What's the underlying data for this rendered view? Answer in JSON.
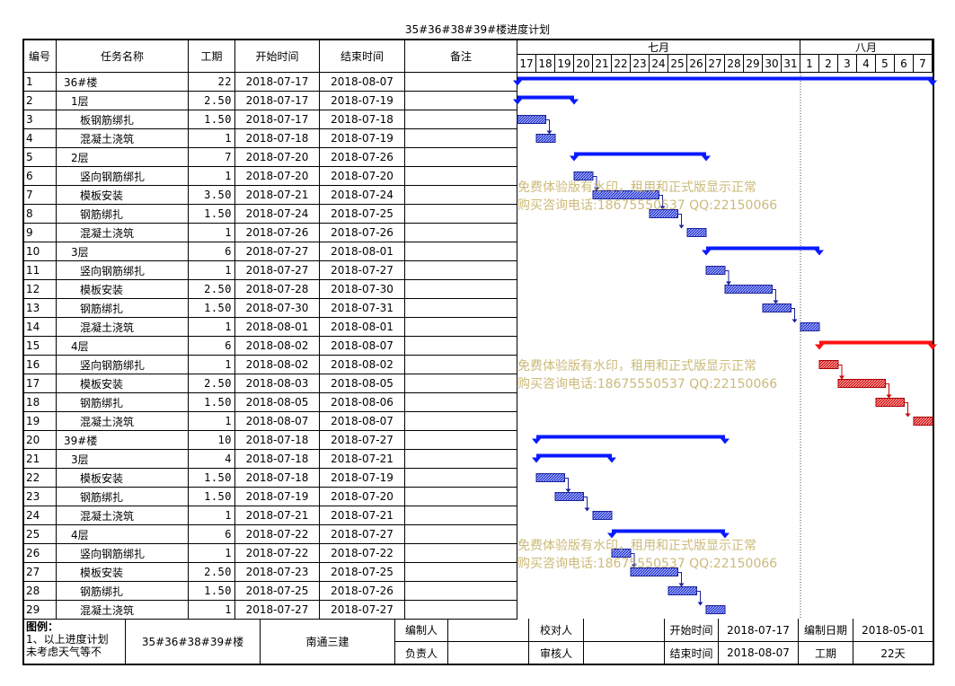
{
  "title": "35#36#38#39#楼进度计划",
  "headers": {
    "id": "编号",
    "name": "任务名称",
    "duration": "工期",
    "start": "开始时间",
    "end": "结束时间",
    "note": "备注"
  },
  "months": [
    "七月",
    "八月"
  ],
  "days": [
    "17",
    "18",
    "19",
    "20",
    "21",
    "22",
    "23",
    "24",
    "25",
    "26",
    "27",
    "28",
    "29",
    "30",
    "31",
    "1",
    "2",
    "3",
    "4",
    "5",
    "6",
    "7"
  ],
  "chart_data": {
    "type": "gantt",
    "timeline_start": "2018-07-17",
    "timeline_end": "2018-08-07",
    "rows": [
      {
        "id": "1",
        "name": "36#楼",
        "duration": "22",
        "start": "2018-07-17",
        "end": "2018-08-07",
        "kind": "summary",
        "color": "#0a1aff"
      },
      {
        "id": "2",
        "name": "1层",
        "duration": "2.50",
        "start": "2018-07-17",
        "end": "2018-07-19",
        "kind": "summary",
        "color": "#0a1aff"
      },
      {
        "id": "3",
        "name": "板钢筋绑扎",
        "duration": "1.50",
        "start": "2018-07-17",
        "end": "2018-07-18",
        "kind": "task",
        "color": "#3344dd"
      },
      {
        "id": "4",
        "name": "混凝土浇筑",
        "duration": "1",
        "start": "2018-07-18",
        "end": "2018-07-19",
        "kind": "task",
        "color": "#3344dd"
      },
      {
        "id": "5",
        "name": "2层",
        "duration": "7",
        "start": "2018-07-20",
        "end": "2018-07-26",
        "kind": "summary",
        "color": "#0a1aff"
      },
      {
        "id": "6",
        "name": "竖向钢筋绑扎",
        "duration": "1",
        "start": "2018-07-20",
        "end": "2018-07-20",
        "kind": "task",
        "color": "#3344dd"
      },
      {
        "id": "7",
        "name": "模板安装",
        "duration": "3.50",
        "start": "2018-07-21",
        "end": "2018-07-24",
        "kind": "task",
        "color": "#3344dd"
      },
      {
        "id": "8",
        "name": "钢筋绑扎",
        "duration": "1.50",
        "start": "2018-07-24",
        "end": "2018-07-25",
        "kind": "task",
        "color": "#3344dd"
      },
      {
        "id": "9",
        "name": "混凝土浇筑",
        "duration": "1",
        "start": "2018-07-26",
        "end": "2018-07-26",
        "kind": "task",
        "color": "#3344dd"
      },
      {
        "id": "10",
        "name": "3层",
        "duration": "6",
        "start": "2018-07-27",
        "end": "2018-08-01",
        "kind": "summary",
        "color": "#0a1aff"
      },
      {
        "id": "11",
        "name": "竖向钢筋绑扎",
        "duration": "1",
        "start": "2018-07-27",
        "end": "2018-07-27",
        "kind": "task",
        "color": "#3344dd"
      },
      {
        "id": "12",
        "name": "模板安装",
        "duration": "2.50",
        "start": "2018-07-28",
        "end": "2018-07-30",
        "kind": "task",
        "color": "#3344dd"
      },
      {
        "id": "13",
        "name": "钢筋绑扎",
        "duration": "1.50",
        "start": "2018-07-30",
        "end": "2018-07-31",
        "kind": "task",
        "color": "#3344dd"
      },
      {
        "id": "14",
        "name": "混凝土浇筑",
        "duration": "1",
        "start": "2018-08-01",
        "end": "2018-08-01",
        "kind": "task",
        "color": "#3344dd"
      },
      {
        "id": "15",
        "name": "4层",
        "duration": "6",
        "start": "2018-08-02",
        "end": "2018-08-07",
        "kind": "summary",
        "color": "#ff1010"
      },
      {
        "id": "16",
        "name": "竖向钢筋绑扎",
        "duration": "1",
        "start": "2018-08-02",
        "end": "2018-08-02",
        "kind": "task",
        "color": "#dd2222"
      },
      {
        "id": "17",
        "name": "模板安装",
        "duration": "2.50",
        "start": "2018-08-03",
        "end": "2018-08-05",
        "kind": "task",
        "color": "#dd2222"
      },
      {
        "id": "18",
        "name": "钢筋绑扎",
        "duration": "1.50",
        "start": "2018-08-05",
        "end": "2018-08-06",
        "kind": "task",
        "color": "#dd2222"
      },
      {
        "id": "19",
        "name": "混凝土浇筑",
        "duration": "1",
        "start": "2018-08-07",
        "end": "2018-08-07",
        "kind": "task",
        "color": "#dd2222"
      },
      {
        "id": "20",
        "name": "39#楼",
        "duration": "10",
        "start": "2018-07-18",
        "end": "2018-07-27",
        "kind": "summary",
        "color": "#0a1aff"
      },
      {
        "id": "21",
        "name": "3层",
        "duration": "4",
        "start": "2018-07-18",
        "end": "2018-07-21",
        "kind": "summary",
        "color": "#0a1aff"
      },
      {
        "id": "22",
        "name": "模板安装",
        "duration": "1.50",
        "start": "2018-07-18",
        "end": "2018-07-19",
        "kind": "task",
        "color": "#3344dd"
      },
      {
        "id": "23",
        "name": "钢筋绑扎",
        "duration": "1.50",
        "start": "2018-07-19",
        "end": "2018-07-20",
        "kind": "task",
        "color": "#3344dd"
      },
      {
        "id": "24",
        "name": "混凝土浇筑",
        "duration": "1",
        "start": "2018-07-21",
        "end": "2018-07-21",
        "kind": "task",
        "color": "#3344dd"
      },
      {
        "id": "25",
        "name": "4层",
        "duration": "6",
        "start": "2018-07-22",
        "end": "2018-07-27",
        "kind": "summary",
        "color": "#0a1aff"
      },
      {
        "id": "26",
        "name": "竖向钢筋绑扎",
        "duration": "1",
        "start": "2018-07-22",
        "end": "2018-07-22",
        "kind": "task",
        "color": "#3344dd"
      },
      {
        "id": "27",
        "name": "模板安装",
        "duration": "2.50",
        "start": "2018-07-23",
        "end": "2018-07-25",
        "kind": "task",
        "color": "#3344dd"
      },
      {
        "id": "28",
        "name": "钢筋绑扎",
        "duration": "1.50",
        "start": "2018-07-25",
        "end": "2018-07-26",
        "kind": "task",
        "color": "#3344dd"
      },
      {
        "id": "29",
        "name": "混凝土浇筑",
        "duration": "1",
        "start": "2018-07-27",
        "end": "2018-07-27",
        "kind": "task",
        "color": "#3344dd"
      }
    ]
  },
  "watermark": {
    "line1": "免费体验版有水印，租用和正式版显示正常",
    "line2": "购买咨询电话:18675550537 QQ:22150066"
  },
  "footer": {
    "legend_title": "图例：",
    "legend_note_line1": "1、以上进度计划",
    "legend_note_line2": "未考虑天气等不",
    "project": "35#36#38#39#楼",
    "company": "南通三建",
    "prepared_by_label": "编制人",
    "prepared_by_value": "",
    "checked_by_label": "校对人",
    "checked_by_value": "",
    "responsible_label": "负责人",
    "responsible_value": "",
    "reviewer_label": "审核人",
    "reviewer_value": "",
    "start_label": "开始时间",
    "start_value": "2018-07-17",
    "end_label": "结束时间",
    "end_value": "2018-08-07",
    "created_label": "编制日期",
    "created_value": "2018-05-01",
    "duration_label": "工期",
    "duration_value": "22天"
  }
}
